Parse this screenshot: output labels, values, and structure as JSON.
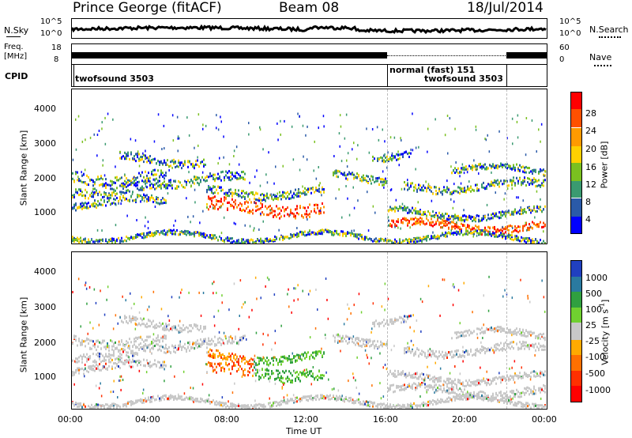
{
  "header": {
    "station": "Prince George (fitACF)",
    "beam": "Beam 08",
    "date": "18/Jul/2014"
  },
  "noise_panel": {
    "left_label": "N.Sky",
    "right_label": "N.Search",
    "left_ticks": [
      "10^5",
      "10^0"
    ],
    "right_ticks": [
      "10^5",
      "10^0"
    ],
    "right_line_style": "dotted"
  },
  "freq_panel": {
    "left_label_1": "Freq.",
    "left_label_2": "[MHz]",
    "left_ticks": [
      "18",
      "8"
    ],
    "right_label": "Nave",
    "right_ticks": [
      "60",
      "0"
    ]
  },
  "cpid_panel": {
    "label": "CPID",
    "entries": [
      {
        "text": "twofsound 3503"
      },
      {
        "text": "normal (fast) 151"
      },
      {
        "text": "twofsound 3503"
      }
    ]
  },
  "chart_data": [
    {
      "type": "heatmap",
      "name": "power",
      "ylabel": "Slant Range [km]",
      "xlabel": "",
      "yticks": [
        "1000",
        "2000",
        "3000",
        "4000"
      ],
      "ylim": [
        200,
        4600
      ],
      "colorbar": {
        "label": "Power [dB]",
        "ticks": [
          "28",
          "24",
          "20",
          "16",
          "12",
          "8",
          "4"
        ],
        "colors": [
          "#ff0000",
          "#ff5000",
          "#ff9a00",
          "#ffd000",
          "#7ac020",
          "#3a9a70",
          "#2a5aa8",
          "#0000ff"
        ]
      }
    },
    {
      "type": "heatmap",
      "name": "velocity",
      "ylabel": "Slant Range [km]",
      "xlabel": "Time UT",
      "yticks": [
        "1000",
        "2000",
        "3000",
        "4000"
      ],
      "ylim": [
        200,
        4600
      ],
      "xticks": [
        "00:00",
        "04:00",
        "08:00",
        "12:00",
        "16:00",
        "20:00",
        "00:00"
      ],
      "colorbar": {
        "label": "Velocity [m s",
        "label_sup": "-1",
        "label_end": "]",
        "ticks": [
          "1000",
          "500",
          "100",
          "25",
          "-25",
          "-100",
          "-500",
          "-1000"
        ],
        "colors": [
          "#2040c0",
          "#2a7aa0",
          "#30a040",
          "#70d030",
          "#c8c8c8",
          "#ffaa00",
          "#ff7000",
          "#ff3000",
          "#ff0000"
        ]
      }
    }
  ]
}
